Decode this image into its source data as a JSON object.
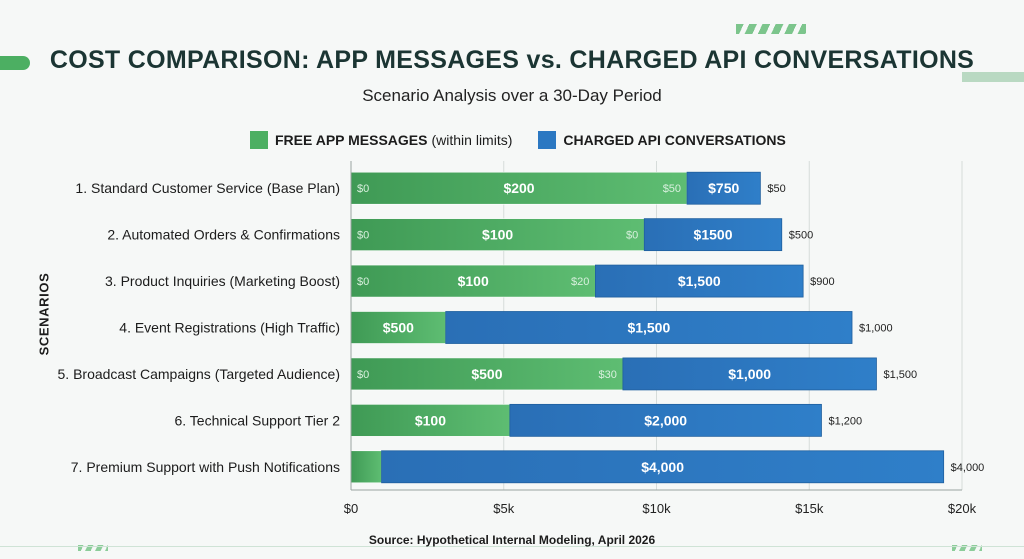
{
  "title": "COST COMPARISON: APP MESSAGES vs. CHARGED API CONVERSATIONS",
  "subtitle": "Scenario Analysis over a 30-Day Period",
  "source": "Source: Hypothetical Internal Modeling, April 2026",
  "legend": [
    {
      "name": "FREE APP MESSAGES",
      "note": "(within limits)",
      "color": "#4caf62"
    },
    {
      "name": "CHARGED API CONVERSATIONS",
      "note": "",
      "color": "#2b78c2"
    }
  ],
  "chart_data": {
    "type": "bar",
    "orientation": "horizontal",
    "stacked": true,
    "ylabel": "SCENARIOS",
    "xlabel": "",
    "xlim": [
      0,
      20000
    ],
    "xticks": [
      0,
      5000,
      10000,
      15000,
      20000
    ],
    "xtick_labels": [
      "$0",
      "$5k",
      "$10k",
      "$15k",
      "$20k"
    ],
    "grid": true,
    "legend_position": "top",
    "categories": [
      "1. Standard Customer Service (Base Plan)",
      "2. Automated Orders & Confirmations",
      "3. Product Inquiries (Marketing Boost)",
      "4. Event Registrations (High Traffic)",
      "5. Broadcast Campaigns (Targeted Audience)",
      "6. Technical Support Tier 2",
      "7. Premium Support with Push Notifications"
    ],
    "series": [
      {
        "name": "FREE APP MESSAGES",
        "color": "#4caf62",
        "values": [
          11000,
          9600,
          8000,
          3100,
          8900,
          5200,
          1000
        ]
      },
      {
        "name": "CHARGED API CONVERSATIONS",
        "color": "#2b78c2",
        "values": [
          2400,
          4500,
          6800,
          13300,
          8300,
          10200,
          18400
        ]
      }
    ],
    "labels": [
      {
        "start": "$0",
        "green": "$200",
        "green_end": "$50",
        "blue": "$750",
        "outside": "$50"
      },
      {
        "start": "$0",
        "green": "$100",
        "green_end": "$0",
        "blue": "$1500",
        "outside": "$500"
      },
      {
        "start": "$0",
        "green": "$100",
        "green_end": "$20",
        "blue": "$1,500",
        "outside": "$900"
      },
      {
        "start": "",
        "green": "$500",
        "green_end": "",
        "blue": "$1,500",
        "outside": "$1,000"
      },
      {
        "start": "$0",
        "green": "$500",
        "green_end": "$30",
        "blue": "$1,000",
        "outside": "$1,500"
      },
      {
        "start": "",
        "green": "$100",
        "green_end": "",
        "blue": "$2,000",
        "outside": "$1,200"
      },
      {
        "start": "",
        "green": "",
        "green_end": "",
        "blue": "$4,000",
        "outside": "$4,000"
      }
    ]
  }
}
